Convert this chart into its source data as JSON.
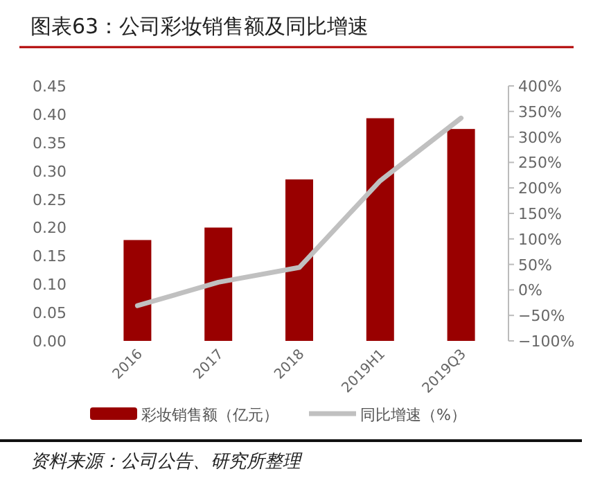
{
  "chart_data": {
    "type": "bar",
    "title": "图表63：公司彩妆销售额及同比增速",
    "categories": [
      "2016",
      "2017",
      "2018",
      "2019H1",
      "2019Q3"
    ],
    "series": [
      {
        "name": "彩妆销售额（亿元）",
        "color": "#990000",
        "values": [
          0.178,
          0.2,
          0.285,
          0.393,
          0.374
        ]
      },
      {
        "name": "同比增速（%）",
        "type": "line",
        "axis": "y2",
        "color": "#c0c0c0",
        "values": [
          -31,
          15,
          44,
          214,
          337
        ]
      }
    ],
    "ylim": [
      0,
      0.45
    ],
    "yticks": [
      {
        "value": 0,
        "label": "0.00"
      },
      {
        "value": 0.05,
        "label": "0.05"
      },
      {
        "value": 0.1,
        "label": "0.10"
      },
      {
        "value": 0.15,
        "label": "0.15"
      },
      {
        "value": 0.2,
        "label": "0.20"
      },
      {
        "value": 0.25,
        "label": "0.25"
      },
      {
        "value": 0.3,
        "label": "0.30"
      },
      {
        "value": 0.35,
        "label": "0.35"
      },
      {
        "value": 0.4,
        "label": "0.40"
      },
      {
        "value": 0.45,
        "label": "0.45"
      }
    ],
    "y2lim": [
      -100,
      400
    ],
    "y2ticks": [
      {
        "value": -100,
        "label": "−100%"
      },
      {
        "value": -50,
        "label": "−50%"
      },
      {
        "value": 0,
        "label": "0%"
      },
      {
        "value": 50,
        "label": "50%"
      },
      {
        "value": 100,
        "label": "100%"
      },
      {
        "value": 150,
        "label": "150%"
      },
      {
        "value": 200,
        "label": "200%"
      },
      {
        "value": 250,
        "label": "250%"
      },
      {
        "value": 300,
        "label": "300%"
      },
      {
        "value": 350,
        "label": "350%"
      },
      {
        "value": 400,
        "label": "400%"
      }
    ],
    "legend": "bottom",
    "annotations": [
      "资料来源：公司公告、研究所整理"
    ]
  }
}
